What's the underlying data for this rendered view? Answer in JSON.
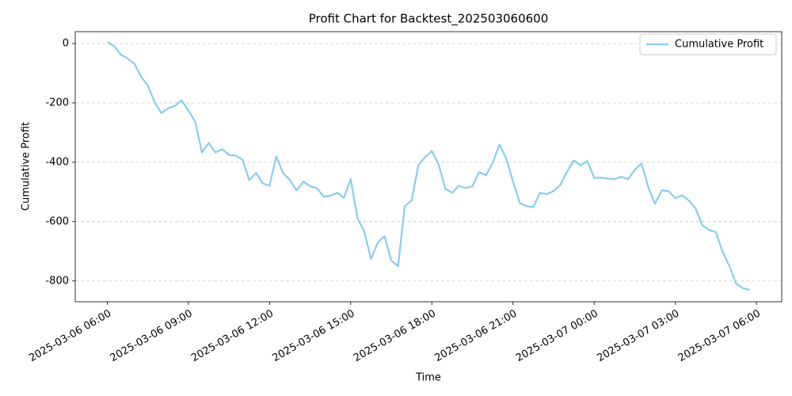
{
  "chart_data": {
    "type": "line",
    "title": "Profit Chart for Backtest_202503060600",
    "x_label": "Time",
    "y_label": "Cumulative Profit",
    "x": [
      "2025-03-06 06:00",
      "2025-03-06 06:15",
      "2025-03-06 06:30",
      "2025-03-06 06:45",
      "2025-03-06 07:00",
      "2025-03-06 07:15",
      "2025-03-06 07:30",
      "2025-03-06 07:45",
      "2025-03-06 08:00",
      "2025-03-06 08:15",
      "2025-03-06 08:30",
      "2025-03-06 08:45",
      "2025-03-06 09:00",
      "2025-03-06 09:15",
      "2025-03-06 09:30",
      "2025-03-06 09:45",
      "2025-03-06 10:00",
      "2025-03-06 10:15",
      "2025-03-06 10:30",
      "2025-03-06 10:45",
      "2025-03-06 11:00",
      "2025-03-06 11:15",
      "2025-03-06 11:30",
      "2025-03-06 11:45",
      "2025-03-06 12:00",
      "2025-03-06 12:15",
      "2025-03-06 12:30",
      "2025-03-06 12:45",
      "2025-03-06 13:00",
      "2025-03-06 13:15",
      "2025-03-06 13:30",
      "2025-03-06 13:45",
      "2025-03-06 14:00",
      "2025-03-06 14:15",
      "2025-03-06 14:30",
      "2025-03-06 14:45",
      "2025-03-06 15:00",
      "2025-03-06 15:15",
      "2025-03-06 15:30",
      "2025-03-06 15:45",
      "2025-03-06 16:00",
      "2025-03-06 16:15",
      "2025-03-06 16:30",
      "2025-03-06 16:45",
      "2025-03-06 17:00",
      "2025-03-06 17:15",
      "2025-03-06 17:30",
      "2025-03-06 17:45",
      "2025-03-06 18:00",
      "2025-03-06 18:15",
      "2025-03-06 18:30",
      "2025-03-06 18:45",
      "2025-03-06 19:00",
      "2025-03-06 19:15",
      "2025-03-06 19:30",
      "2025-03-06 19:45",
      "2025-03-06 20:00",
      "2025-03-06 20:15",
      "2025-03-06 20:30",
      "2025-03-06 20:45",
      "2025-03-06 21:00",
      "2025-03-06 21:15",
      "2025-03-06 21:30",
      "2025-03-06 21:45",
      "2025-03-06 22:00",
      "2025-03-06 22:15",
      "2025-03-06 22:30",
      "2025-03-06 22:45",
      "2025-03-06 23:00",
      "2025-03-06 23:15",
      "2025-03-06 23:30",
      "2025-03-06 23:45",
      "2025-03-07 00:00",
      "2025-03-07 00:15",
      "2025-03-07 00:30",
      "2025-03-07 00:45",
      "2025-03-07 01:00",
      "2025-03-07 01:15",
      "2025-03-07 01:30",
      "2025-03-07 01:45",
      "2025-03-07 02:00",
      "2025-03-07 02:15",
      "2025-03-07 02:30",
      "2025-03-07 02:45",
      "2025-03-07 03:00",
      "2025-03-07 03:15",
      "2025-03-07 03:30",
      "2025-03-07 03:45",
      "2025-03-07 04:00",
      "2025-03-07 04:15",
      "2025-03-07 04:30",
      "2025-03-07 04:45",
      "2025-03-07 05:00",
      "2025-03-07 05:15",
      "2025-03-07 05:30",
      "2025-03-07 05:45"
    ],
    "series": [
      {
        "name": "Cumulative Profit",
        "color": "#87ceeb",
        "values": [
          5,
          -8,
          -37,
          -50,
          -68,
          -112,
          -141,
          -197,
          -234,
          -218,
          -210,
          -191,
          -226,
          -263,
          -367,
          -335,
          -367,
          -356,
          -375,
          -378,
          -391,
          -460,
          -436,
          -471,
          -479,
          -380,
          -436,
          -460,
          -495,
          -465,
          -481,
          -487,
          -516,
          -513,
          -503,
          -519,
          -457,
          -588,
          -633,
          -726,
          -670,
          -649,
          -731,
          -750,
          -548,
          -529,
          -410,
          -383,
          -362,
          -407,
          -489,
          -503,
          -479,
          -487,
          -481,
          -433,
          -444,
          -402,
          -340,
          -388,
          -465,
          -537,
          -548,
          -551,
          -503,
          -508,
          -497,
          -476,
          -431,
          -394,
          -410,
          -396,
          -452,
          -452,
          -455,
          -457,
          -449,
          -457,
          -426,
          -404,
          -484,
          -540,
          -495,
          -497,
          -521,
          -511,
          -529,
          -556,
          -612,
          -628,
          -636,
          -702,
          -750,
          -809,
          -824,
          -830
        ]
      }
    ],
    "xlim": [
      "2025-03-06 04:49",
      "2025-03-07 06:56"
    ],
    "xticks": [
      "2025-03-06 06:00",
      "2025-03-06 09:00",
      "2025-03-06 12:00",
      "2025-03-06 15:00",
      "2025-03-06 18:00",
      "2025-03-06 21:00",
      "2025-03-07 00:00",
      "2025-03-07 03:00",
      "2025-03-07 06:00"
    ],
    "ylim": [
      -870,
      40
    ],
    "yticks": [
      0,
      -200,
      -400,
      -600,
      -800
    ],
    "grid": true,
    "legend": "upper right"
  }
}
